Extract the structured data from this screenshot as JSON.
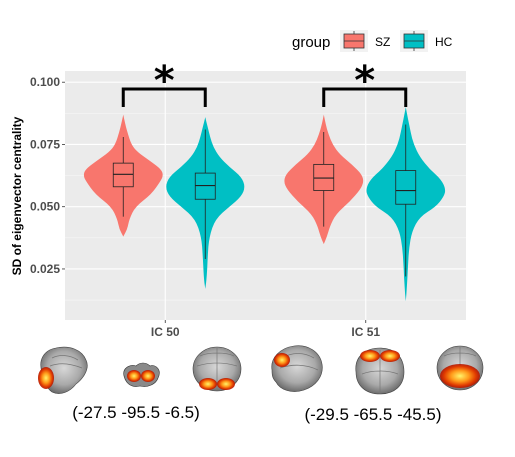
{
  "chart_data": {
    "type": "violin",
    "ylabel": "SD of eigenvector centrality",
    "xlabel": "",
    "categories": [
      "IC 50",
      "IC 51"
    ],
    "ylim": [
      0.0045,
      0.1045
    ],
    "yticks": [
      0.025,
      0.05,
      0.075,
      0.1
    ],
    "ytick_labels": [
      "0.025",
      "0.050",
      "0.075",
      "0.100"
    ],
    "grid": true,
    "legend": {
      "title": "group",
      "position": "top-right",
      "entries": [
        {
          "name": "SZ",
          "color": "#F8766D"
        },
        {
          "name": "HC",
          "color": "#00BFC4"
        }
      ]
    },
    "significance": [
      {
        "category": "IC 50",
        "label": "*"
      },
      {
        "category": "IC 51",
        "label": "*"
      }
    ],
    "series": [
      {
        "name": "SZ",
        "color": "#F8766D",
        "values": [
          {
            "category": "IC 50",
            "min": 0.046,
            "q1": 0.058,
            "median": 0.063,
            "q3": 0.0675,
            "max": 0.078,
            "profile": [
              [
                0.038,
                0.0
              ],
              [
                0.041,
                0.1
              ],
              [
                0.045,
                0.15
              ],
              [
                0.05,
                0.3
              ],
              [
                0.055,
                0.7
              ],
              [
                0.06,
                0.92
              ],
              [
                0.0625,
                1.0
              ],
              [
                0.065,
                0.95
              ],
              [
                0.068,
                0.7
              ],
              [
                0.072,
                0.35
              ],
              [
                0.075,
                0.2
              ],
              [
                0.08,
                0.1
              ],
              [
                0.084,
                0.04
              ],
              [
                0.087,
                0.0
              ]
            ]
          },
          {
            "category": "IC 51",
            "min": 0.042,
            "q1": 0.0565,
            "median": 0.0615,
            "q3": 0.067,
            "max": 0.08,
            "profile": [
              [
                0.035,
                0.0
              ],
              [
                0.038,
                0.08
              ],
              [
                0.042,
                0.15
              ],
              [
                0.047,
                0.3
              ],
              [
                0.052,
                0.65
              ],
              [
                0.057,
                0.92
              ],
              [
                0.06,
                1.0
              ],
              [
                0.063,
                0.95
              ],
              [
                0.067,
                0.7
              ],
              [
                0.071,
                0.4
              ],
              [
                0.075,
                0.22
              ],
              [
                0.079,
                0.12
              ],
              [
                0.083,
                0.05
              ],
              [
                0.087,
                0.0
              ]
            ]
          }
        ]
      },
      {
        "name": "HC",
        "color": "#00BFC4",
        "values": [
          {
            "category": "IC 50",
            "min": 0.029,
            "q1": 0.053,
            "median": 0.0585,
            "q3": 0.0635,
            "max": 0.081,
            "profile": [
              [
                0.017,
                0.0
              ],
              [
                0.022,
                0.04
              ],
              [
                0.03,
                0.06
              ],
              [
                0.038,
                0.1
              ],
              [
                0.045,
                0.25
              ],
              [
                0.05,
                0.6
              ],
              [
                0.054,
                0.9
              ],
              [
                0.058,
                1.0
              ],
              [
                0.062,
                0.9
              ],
              [
                0.066,
                0.6
              ],
              [
                0.07,
                0.35
              ],
              [
                0.074,
                0.2
              ],
              [
                0.078,
                0.12
              ],
              [
                0.082,
                0.06
              ],
              [
                0.086,
                0.0
              ]
            ]
          },
          {
            "category": "IC 51",
            "min": 0.022,
            "q1": 0.051,
            "median": 0.0565,
            "q3": 0.0645,
            "max": 0.083,
            "profile": [
              [
                0.012,
                0.0
              ],
              [
                0.018,
                0.03
              ],
              [
                0.025,
                0.05
              ],
              [
                0.033,
                0.08
              ],
              [
                0.04,
                0.15
              ],
              [
                0.046,
                0.35
              ],
              [
                0.05,
                0.75
              ],
              [
                0.054,
                0.95
              ],
              [
                0.057,
                1.0
              ],
              [
                0.061,
                0.88
              ],
              [
                0.065,
                0.6
              ],
              [
                0.07,
                0.35
              ],
              [
                0.075,
                0.2
              ],
              [
                0.08,
                0.12
              ],
              [
                0.085,
                0.06
              ],
              [
                0.09,
                0.0
              ]
            ]
          }
        ]
      }
    ]
  },
  "brain_coordinates": [
    {
      "component": "IC 50",
      "label": "(-27.5 -95.5 -6.5)"
    },
    {
      "component": "IC 51",
      "label": "(-29.5 -65.5 -45.5)"
    }
  ]
}
